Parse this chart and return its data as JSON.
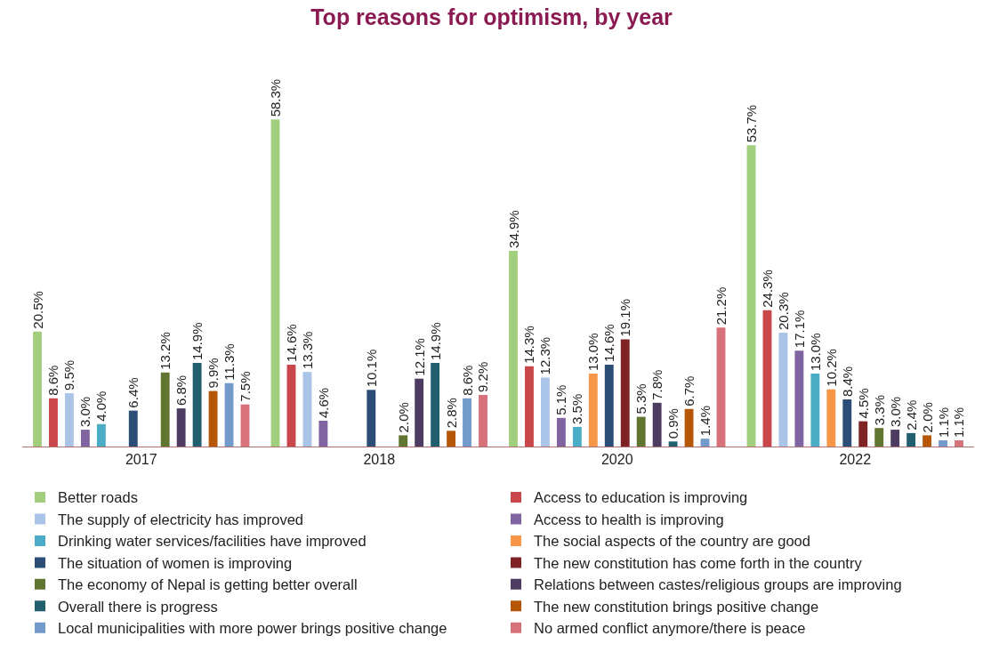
{
  "chart_data": {
    "type": "bar",
    "title": "Top reasons for optimism, by year",
    "categories": [
      "2017",
      "2018",
      "2020",
      "2022"
    ],
    "legend": "bottom",
    "series": [
      {
        "name": "Better roads",
        "color": "#a2cf7e",
        "values": [
          20.5,
          58.3,
          34.9,
          53.7
        ],
        "value_labels": [
          "20.5%",
          "58.3%",
          "34.9%",
          "53.7%"
        ]
      },
      {
        "name": "Access to education is improving",
        "color": "#c9474a",
        "values": [
          8.6,
          14.6,
          14.3,
          24.3
        ],
        "value_labels": [
          "8.6%",
          "14.6%",
          "14.3%",
          "24.3%"
        ]
      },
      {
        "name": "The supply of electricity has improved",
        "color": "#a9c4e6",
        "values": [
          9.5,
          13.3,
          12.3,
          20.3
        ],
        "value_labels": [
          "9.5%",
          "13.3%",
          "12.3%",
          "20.3%"
        ]
      },
      {
        "name": "Access to health is improving",
        "color": "#8064a2",
        "values": [
          3.0,
          4.6,
          5.1,
          17.1
        ],
        "value_labels": [
          "3.0%",
          "4.6%",
          "5.1%",
          "17.1%"
        ]
      },
      {
        "name": "Drinking water services/facilities have improved",
        "color": "#4bacc6",
        "values": [
          4.0,
          null,
          3.5,
          13.0
        ],
        "value_labels": [
          "4.0%",
          null,
          "3.5%",
          "13.0%"
        ]
      },
      {
        "name": "The social aspects of the country are good",
        "color": "#f79646",
        "values": [
          null,
          null,
          13.0,
          10.2
        ],
        "value_labels": [
          null,
          null,
          "13.0%",
          "10.2%"
        ]
      },
      {
        "name": "The situation of women is improving",
        "color": "#2c4d75",
        "values": [
          6.4,
          10.1,
          14.6,
          8.4
        ],
        "value_labels": [
          "6.4%",
          "10.1%",
          "14.6%",
          "8.4%"
        ]
      },
      {
        "name": "The new constitution has come forth in the country",
        "color": "#7f2224",
        "values": [
          null,
          null,
          19.1,
          4.5
        ],
        "value_labels": [
          null,
          null,
          "19.1%",
          "4.5%"
        ]
      },
      {
        "name": "The economy of Nepal is getting better overall",
        "color": "#5f7530",
        "values": [
          13.2,
          2.0,
          5.3,
          3.3
        ],
        "value_labels": [
          "13.2%",
          "2.0%",
          "5.3%",
          "3.3%"
        ]
      },
      {
        "name": "Relations between castes/religious groups are improving",
        "color": "#4d3b62",
        "values": [
          6.8,
          12.1,
          7.8,
          3.0
        ],
        "value_labels": [
          "6.8%",
          "12.1%",
          "7.8%",
          "3.0%"
        ]
      },
      {
        "name": "Overall there is progress",
        "color": "#215f6f",
        "values": [
          14.9,
          14.9,
          0.9,
          2.4
        ],
        "value_labels": [
          "14.9%",
          "14.9%",
          "0.9%",
          "2.4%"
        ]
      },
      {
        "name": "The new constitution brings positive change",
        "color": "#b65708",
        "values": [
          9.9,
          2.8,
          6.7,
          2.0
        ],
        "value_labels": [
          "9.9%",
          "2.8%",
          "6.7%",
          "2.0%"
        ]
      },
      {
        "name": "Local municipalities with more power brings positive change",
        "color": "#729aca",
        "values": [
          11.3,
          8.6,
          1.4,
          1.1
        ],
        "value_labels": [
          "11.3%",
          "8.6%",
          "1.4%",
          "1.1%"
        ]
      },
      {
        "name": "No armed conflict anymore/there is peace",
        "color": "#d7717a",
        "values": [
          7.5,
          9.2,
          21.2,
          1.1
        ],
        "value_labels": [
          "7.5%",
          "9.2%",
          "21.2%",
          "1.1%"
        ]
      }
    ]
  }
}
